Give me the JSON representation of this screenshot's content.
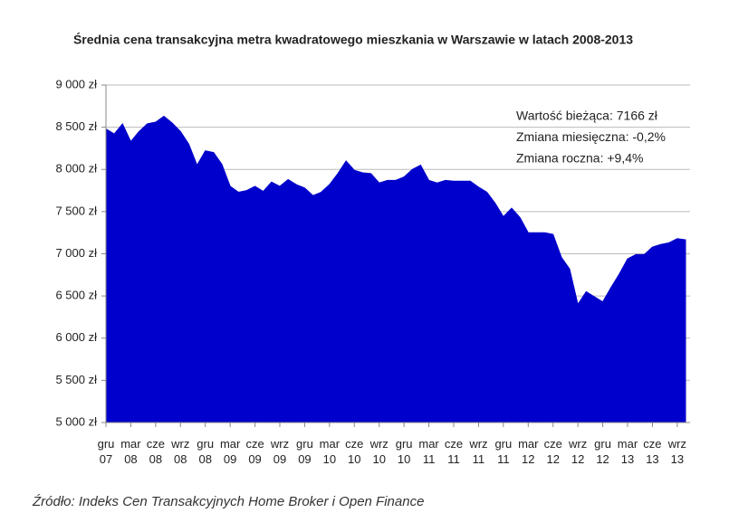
{
  "chart_data": {
    "type": "area",
    "title": "Średnia cena transakcyjna metra kwadratowego mieszkania w Warszawie w latach 2008-2013",
    "annotations": [
      "Wartość bieżąca: 7166 zł",
      "Zmiana miesięczna: -0,2%",
      "Zmiana roczna: +9,4%"
    ],
    "source": "Źródło: Indeks Cen Transakcyjnych Home Broker i Open Finance",
    "color": "#0000cc",
    "grid": true,
    "ylim": [
      5000,
      9000
    ],
    "yticks": [
      {
        "value": 5000,
        "label": "5 000 zł"
      },
      {
        "value": 5500,
        "label": "5 500 zł"
      },
      {
        "value": 6000,
        "label": "6 000 zł"
      },
      {
        "value": 6500,
        "label": "6 500 zł"
      },
      {
        "value": 7000,
        "label": "7 000 zł"
      },
      {
        "value": 7500,
        "label": "7 500 zł"
      },
      {
        "value": 8000,
        "label": "8 000 zł"
      },
      {
        "value": 8500,
        "label": "8 500 zł"
      },
      {
        "value": 9000,
        "label": "9 000 zł"
      }
    ],
    "categories": [
      "gru 07",
      null,
      null,
      "mar 08",
      null,
      null,
      "cze 08",
      null,
      null,
      "wrz 08",
      null,
      null,
      "gru 08",
      null,
      null,
      "mar 09",
      null,
      null,
      "cze 09",
      null,
      null,
      "wrz 09",
      null,
      null,
      "gru 09",
      null,
      null,
      "mar 10",
      null,
      null,
      "cze 10",
      null,
      null,
      "wrz 10",
      null,
      null,
      "gru 10",
      null,
      null,
      "mar 11",
      null,
      null,
      "cze 11",
      null,
      null,
      "wrz 11",
      null,
      null,
      "gru 11",
      null,
      null,
      "mar 12",
      null,
      null,
      "cze 12",
      null,
      null,
      "wrz 12",
      null,
      null,
      "gru 12",
      null,
      null,
      "mar 13",
      null,
      null,
      "cze 13",
      null,
      null,
      "wrz 13",
      null
    ],
    "values": [
      8480,
      8420,
      8540,
      8330,
      8450,
      8540,
      8560,
      8630,
      8550,
      8450,
      8300,
      8050,
      8220,
      8200,
      8060,
      7800,
      7730,
      7750,
      7800,
      7740,
      7850,
      7800,
      7880,
      7820,
      7780,
      7690,
      7730,
      7820,
      7950,
      8100,
      7990,
      7960,
      7950,
      7840,
      7870,
      7870,
      7910,
      8000,
      8050,
      7870,
      7840,
      7870,
      7860,
      7860,
      7860,
      7790,
      7730,
      7600,
      7440,
      7540,
      7430,
      7250,
      7250,
      7250,
      7230,
      6960,
      6820,
      6400,
      6550,
      6490,
      6430,
      6600,
      6760,
      6940,
      6990,
      6990,
      7080,
      7110,
      7130,
      7180,
      7166
    ]
  }
}
